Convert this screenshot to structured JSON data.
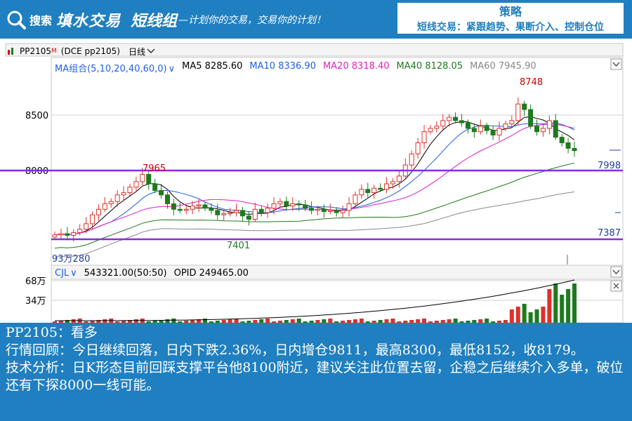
{
  "banner": {
    "brand_search": "搜索",
    "brand_name": "填水交易",
    "slogan_title": "短线组",
    "slogan_sub": "—计划你的交易，交易你的计划！",
    "strategy_title": "策略",
    "strategy_text": "短线交易：紧跟趋势、果断介入、控制仓位"
  },
  "toolbar": {
    "symbol": "PP2105",
    "symbol_sup": "M",
    "exchange": "(DCE pp2105)",
    "period": "日线"
  },
  "ma_legend": {
    "combo": "MA组合(5,10,20,40,60,0)",
    "ma5": "MA5 8285.60",
    "ma10": "MA10 8336.90",
    "ma20": "MA20 8318.40",
    "ma40": "MA40 8128.05",
    "ma60": "MA60 7945.90"
  },
  "cjl_legend": {
    "name": "CJL",
    "value": "543321.00(50:50)",
    "opid": "OPID 249465.00"
  },
  "price_axis": {
    "label_8500": "8500",
    "label_8000": "8000"
  },
  "volume_axis": {
    "label_68": "68万",
    "label_34": "34万"
  },
  "annotations": {
    "high_price": "8748",
    "mid_high": "7965",
    "mid_low": "7401",
    "resistance": "7998",
    "support": "7387",
    "left_low": "93万280"
  },
  "colors": {
    "banner": "#1f7fc0",
    "up_candle": "#e0302a",
    "down_candle": "#1e7a1e",
    "ma5": "#000000",
    "ma10": "#1e5fe0",
    "ma20": "#e020c0",
    "ma40": "#1e7a1e",
    "ma60": "#888888",
    "level_line": "#8a2be2"
  },
  "info": {
    "line1": "PP2105：看多",
    "line2": "行情回顾：今日继续回落，日内下跌2.36%，日内增仓9811，最高8300，最低8152，收8179。",
    "line3": "技术分析：日K形态目前回踩支撑平台他8100附近，建议关注此位置去留，企稳之后继续介入多单，破位还有下探8000一线可能。"
  }
}
